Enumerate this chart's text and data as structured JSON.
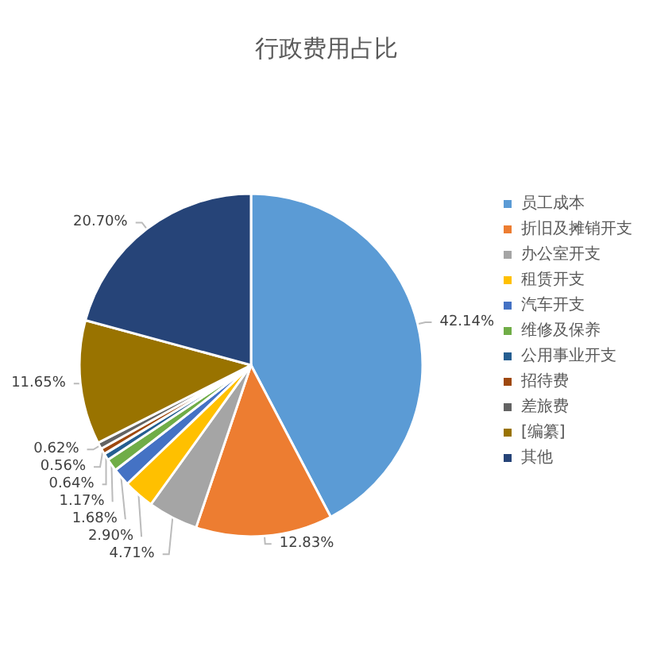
{
  "chart_data": {
    "type": "pie",
    "title": "行政费用占比",
    "categories": [
      "员工成本",
      "折旧及摊销开支",
      "办公室开支",
      "租赁开支",
      "汽车开支",
      "维修及保养",
      "公用事业开支",
      "招待费",
      "差旅费",
      "[编纂]",
      "其他"
    ],
    "values": [
      42.14,
      12.83,
      4.71,
      2.9,
      1.68,
      1.17,
      0.64,
      0.56,
      0.62,
      11.65,
      20.7
    ],
    "value_labels": [
      "42.14%",
      "12.83%",
      "4.71%",
      "2.90%",
      "1.68%",
      "1.17%",
      "0.64%",
      "0.56%",
      "0.62%",
      "11.65%",
      "20.70%"
    ],
    "colors": [
      "#5b9bd5",
      "#ed7d31",
      "#a5a5a5",
      "#ffc000",
      "#4472c4",
      "#70ad47",
      "#255e91",
      "#9e480e",
      "#636363",
      "#997300",
      "#264478"
    ],
    "legend": "right"
  }
}
